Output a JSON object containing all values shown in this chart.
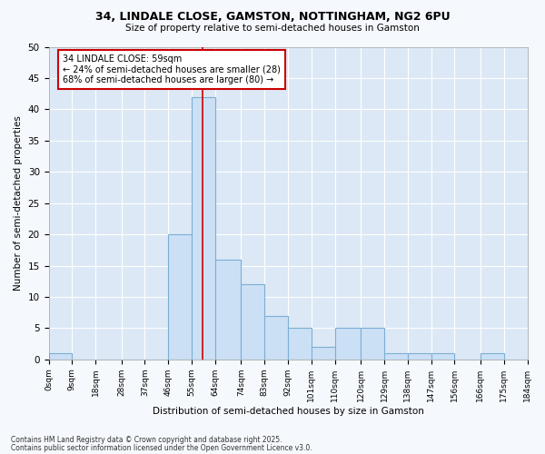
{
  "title1": "34, LINDALE CLOSE, GAMSTON, NOTTINGHAM, NG2 6PU",
  "title2": "Size of property relative to semi-detached houses in Gamston",
  "xlabel": "Distribution of semi-detached houses by size in Gamston",
  "ylabel": "Number of semi-detached properties",
  "bins": [
    0,
    9,
    18,
    28,
    37,
    46,
    55,
    64,
    74,
    83,
    92,
    101,
    110,
    120,
    129,
    138,
    147,
    156,
    166,
    175,
    184
  ],
  "counts": [
    1,
    0,
    0,
    0,
    0,
    20,
    42,
    16,
    12,
    7,
    5,
    2,
    5,
    5,
    1,
    1,
    1,
    0,
    1,
    0
  ],
  "bar_color": "#cce0f5",
  "bar_edge_color": "#7bafd4",
  "property_size": 59,
  "vline_color": "#cc0000",
  "annotation_line1": "34 LINDALE CLOSE: 59sqm",
  "annotation_line2": "← 24% of semi-detached houses are smaller (28)",
  "annotation_line3": "68% of semi-detached houses are larger (80) →",
  "annotation_box_color": "#ffffff",
  "annotation_border_color": "#cc0000",
  "ylim": [
    0,
    50
  ],
  "yticks": [
    0,
    5,
    10,
    15,
    20,
    25,
    30,
    35,
    40,
    45,
    50
  ],
  "fig_bg_color": "#f5f8fc",
  "plot_bg_color": "#dce8f5",
  "grid_color": "#ffffff",
  "footer1": "Contains HM Land Registry data © Crown copyright and database right 2025.",
  "footer2": "Contains public sector information licensed under the Open Government Licence v3.0."
}
